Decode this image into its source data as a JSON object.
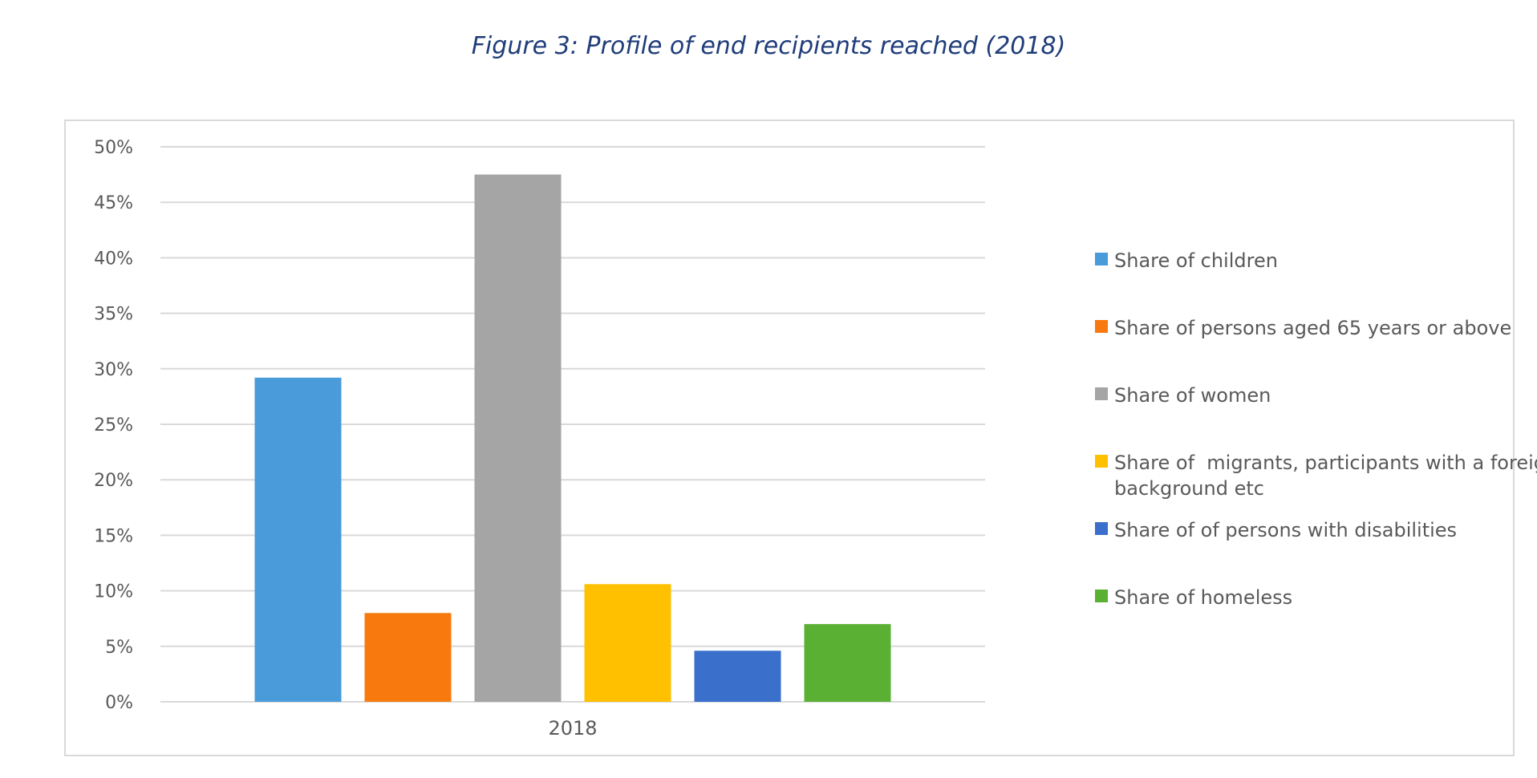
{
  "figure": {
    "title": "Figure 3: Profile of end recipients reached (2018)"
  },
  "chart_data": {
    "type": "bar",
    "title": "",
    "xlabel": "",
    "ylabel": "",
    "categories": [
      "2018"
    ],
    "ylim": [
      0,
      0.5
    ],
    "ytick_values": [
      0,
      0.05,
      0.1,
      0.15,
      0.2,
      0.25,
      0.3,
      0.35,
      0.4,
      0.45,
      0.5
    ],
    "ytick_labels": [
      "0%",
      "5%",
      "10%",
      "15%",
      "20%",
      "25%",
      "30%",
      "35%",
      "40%",
      "45%",
      "50%"
    ],
    "grid": true,
    "legend_position": "right",
    "series": [
      {
        "name": "Share of children",
        "values": [
          0.292
        ],
        "color": "#4a9bd9"
      },
      {
        "name": "Share of persons aged 65 years or above",
        "values": [
          0.08
        ],
        "color": "#f87a0f"
      },
      {
        "name": "Share of women",
        "values": [
          0.475
        ],
        "color": "#a5a5a5"
      },
      {
        "name": "Share of  migrants, participants with a foreign background etc",
        "values": [
          0.106
        ],
        "color": "#ffc000"
      },
      {
        "name": "Share of of persons with disabilities",
        "values": [
          0.046
        ],
        "color": "#3a6fcc"
      },
      {
        "name": "Share of homeless",
        "values": [
          0.07
        ],
        "color": "#5ab033"
      }
    ]
  }
}
